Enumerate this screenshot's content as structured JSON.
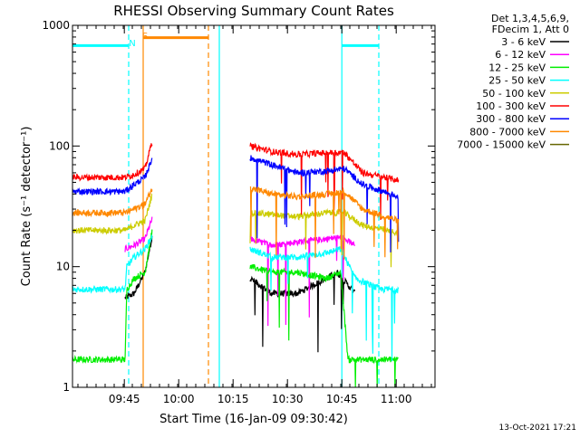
{
  "chart_data": {
    "type": "line",
    "title": "RHESSI Observing Summary Count Rates",
    "xlabel": "Start Time (16-Jan-09 09:30:42)",
    "ylabel": "Count Rate (s⁻¹ detector⁻¹)",
    "x_unit": "minutes since 09:30:42",
    "xlim": [
      0,
      100
    ],
    "x_ticks": [
      {
        "t": 14.3,
        "label": "09:45"
      },
      {
        "t": 29.3,
        "label": "10:00"
      },
      {
        "t": 44.3,
        "label": "10:15"
      },
      {
        "t": 59.3,
        "label": "10:30"
      },
      {
        "t": 74.3,
        "label": "10:45"
      },
      {
        "t": 89.3,
        "label": "11:00"
      }
    ],
    "y_scale": "log",
    "ylim": [
      1,
      1000
    ],
    "y_ticks": [
      {
        "v": 1,
        "label": "1"
      },
      {
        "v": 10,
        "label": "10"
      },
      {
        "v": 100,
        "label": "100"
      },
      {
        "v": 1000,
        "label": "1000"
      }
    ],
    "legend": {
      "placement": "right",
      "header": [
        "Det 1,3,4,5,6,9,",
        "FDecim 1, Att 0"
      ],
      "entries": [
        {
          "label": "3 - 6 keV",
          "color": "#000000"
        },
        {
          "label": "6 - 12 keV",
          "color": "#ff00ff"
        },
        {
          "label": "12 - 25 keV",
          "color": "#00ee00"
        },
        {
          "label": "25 - 50 keV",
          "color": "#00ffff"
        },
        {
          "label": "50 - 100 keV",
          "color": "#cccc00"
        },
        {
          "label": "100 - 300 keV",
          "color": "#ff0000"
        },
        {
          "label": "300 - 800 keV",
          "color": "#0000ff"
        },
        {
          "label": "800 - 7000 keV",
          "color": "#ff8800"
        },
        {
          "label": "7000 - 15000 keV",
          "color": "#666600"
        }
      ]
    },
    "segments": [
      [
        0,
        22.5
      ],
      [
        48,
        100
      ]
    ],
    "series": [
      {
        "name": "3 - 6 keV",
        "color": "#000000",
        "seg1": [
          [
            14.5,
            5.5
          ],
          [
            17,
            6
          ],
          [
            20,
            9
          ],
          [
            22,
            18
          ]
        ],
        "seg2": [
          [
            49,
            8
          ],
          [
            55,
            6
          ],
          [
            62,
            6
          ],
          [
            70,
            8
          ],
          [
            73,
            9
          ],
          [
            78,
            6
          ]
        ]
      },
      {
        "name": "6 - 12 keV",
        "color": "#ff00ff",
        "seg1": [
          [
            14.5,
            14
          ],
          [
            17,
            15
          ],
          [
            20,
            17
          ],
          [
            22,
            25
          ]
        ],
        "seg2": [
          [
            49,
            17
          ],
          [
            55,
            15
          ],
          [
            62,
            16
          ],
          [
            70,
            17
          ],
          [
            74,
            17.5
          ],
          [
            78,
            15
          ]
        ]
      },
      {
        "name": "12 - 25 keV",
        "color": "#00ee00",
        "seg1": [
          [
            0,
            1.7
          ],
          [
            14.5,
            1.7
          ],
          [
            15,
            6.5
          ],
          [
            17,
            8
          ],
          [
            20,
            9
          ],
          [
            22,
            20
          ]
        ],
        "seg2": [
          [
            49,
            10
          ],
          [
            55,
            9
          ],
          [
            62,
            9
          ],
          [
            70,
            8
          ],
          [
            74,
            9
          ],
          [
            76,
            1.7
          ],
          [
            90,
            1.7
          ]
        ]
      },
      {
        "name": "25 - 50 keV",
        "color": "#00ffff",
        "seg1": [
          [
            0,
            6.5
          ],
          [
            14.5,
            6.5
          ],
          [
            15,
            10
          ],
          [
            17,
            12
          ],
          [
            20,
            14
          ],
          [
            22,
            18
          ]
        ],
        "seg2": [
          [
            49,
            14
          ],
          [
            55,
            12
          ],
          [
            62,
            12
          ],
          [
            70,
            13
          ],
          [
            74,
            14
          ],
          [
            78,
            8
          ],
          [
            85,
            6.5
          ],
          [
            90,
            6.5
          ]
        ]
      },
      {
        "name": "50 - 100 keV",
        "color": "#cccc00",
        "seg1": [
          [
            0,
            20
          ],
          [
            14.5,
            20
          ],
          [
            17,
            22
          ],
          [
            20,
            24
          ],
          [
            22,
            40
          ]
        ],
        "seg2": [
          [
            49,
            28
          ],
          [
            55,
            27
          ],
          [
            62,
            26
          ],
          [
            70,
            28
          ],
          [
            75,
            28
          ],
          [
            80,
            22
          ],
          [
            90,
            19
          ]
        ]
      },
      {
        "name": "100 - 300 keV",
        "color": "#ff0000",
        "seg1": [
          [
            0,
            55
          ],
          [
            14.5,
            55
          ],
          [
            17,
            58
          ],
          [
            20,
            65
          ],
          [
            22,
            110
          ]
        ],
        "seg2": [
          [
            49,
            100
          ],
          [
            55,
            90
          ],
          [
            62,
            85
          ],
          [
            70,
            88
          ],
          [
            75,
            88
          ],
          [
            80,
            60
          ],
          [
            90,
            52
          ]
        ]
      },
      {
        "name": "300 - 800 keV",
        "color": "#0000ff",
        "seg1": [
          [
            0,
            42
          ],
          [
            14.5,
            42
          ],
          [
            17,
            48
          ],
          [
            20,
            55
          ],
          [
            22,
            80
          ]
        ],
        "seg2": [
          [
            49,
            80
          ],
          [
            55,
            70
          ],
          [
            62,
            60
          ],
          [
            70,
            62
          ],
          [
            75,
            65
          ],
          [
            80,
            48
          ],
          [
            90,
            38
          ]
        ]
      },
      {
        "name": "800 - 7000 keV",
        "color": "#ff8800",
        "seg1": [
          [
            0,
            28
          ],
          [
            14.5,
            28
          ],
          [
            17,
            30
          ],
          [
            20,
            33
          ],
          [
            22,
            45
          ]
        ],
        "seg2": [
          [
            49,
            45
          ],
          [
            55,
            40
          ],
          [
            62,
            38
          ],
          [
            70,
            40
          ],
          [
            75,
            42
          ],
          [
            80,
            30
          ],
          [
            90,
            24
          ]
        ]
      }
    ],
    "flag_bars": [
      {
        "label": "",
        "color": "#00ffff",
        "level": 680,
        "x": [
          0,
          15.5
        ]
      },
      {
        "label": "N",
        "color": "#00ffff",
        "level": 680,
        "x": [
          16,
          16
        ]
      },
      {
        "label": "",
        "color": "#00ffff",
        "level": 680,
        "x": [
          74.3,
          84.5
        ]
      },
      {
        "label": "S",
        "color": "#ff8800",
        "level": 790,
        "x": [
          19.5,
          37.5
        ]
      }
    ],
    "vlines": [
      {
        "t": 15.5,
        "color": "#00ffff",
        "style": "dashed"
      },
      {
        "t": 19.5,
        "color": "#ff8800",
        "style": "solid"
      },
      {
        "t": 37.5,
        "color": "#ff8800",
        "style": "dashed"
      },
      {
        "t": 40.5,
        "color": "#00ffff",
        "style": "solid"
      },
      {
        "t": 74.3,
        "color": "#00ffff",
        "style": "solid"
      },
      {
        "t": 84.5,
        "color": "#00ffff",
        "style": "dashed"
      }
    ],
    "grid": false
  },
  "footer": {
    "timestamp": "13-Oct-2021 17:21"
  }
}
